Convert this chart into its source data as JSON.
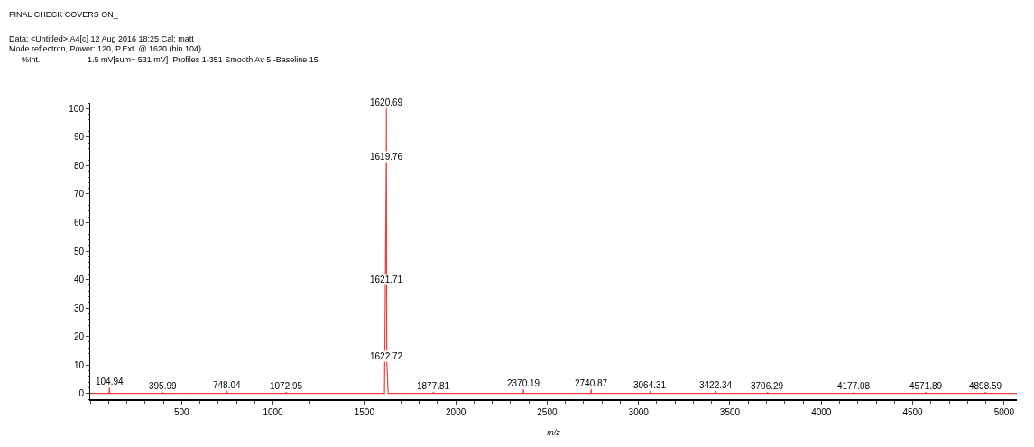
{
  "chart_data": {
    "type": "line",
    "title": "FINAL CHECK COVERS ON_",
    "subtitle": "Data: <Untitled>.A4[c] 12 Aug 2016 18:25 Cal: matt",
    "annotations": [
      "Mode reflectron, Power: 120, P.Ext. @ 1620 (bin 104)",
      "%Int.",
      "1.5 mV[sum= 531 mV]  Profiles 1-351 Smooth Av 5 -Baseline 15",
      {
        "text": "104.94",
        "x": 104.94,
        "y": 2
      },
      {
        "text": "395.99",
        "x": 395.99,
        "y": 0.5
      },
      {
        "text": "748.04",
        "x": 748.04,
        "y": 1
      },
      {
        "text": "1072.95",
        "x": 1072.95,
        "y": 0.5
      },
      {
        "text": "1620.69",
        "x": 1620.69,
        "y": 100
      },
      {
        "text": "1619.76",
        "x": 1619.76,
        "y": 81
      },
      {
        "text": "1621.71",
        "x": 1621.71,
        "y": 38
      },
      {
        "text": "1622.72",
        "x": 1622.72,
        "y": 11
      },
      {
        "text": "1877.81",
        "x": 1877.81,
        "y": 0.5
      },
      {
        "text": "2370.19",
        "x": 2370.19,
        "y": 1.5
      },
      {
        "text": "2740.87",
        "x": 2740.87,
        "y": 1.5
      },
      {
        "text": "3064.31",
        "x": 3064.31,
        "y": 1
      },
      {
        "text": "3422.34",
        "x": 3422.34,
        "y": 1
      },
      {
        "text": "3706.29",
        "x": 3706.29,
        "y": 0.5
      },
      {
        "text": "4177.08",
        "x": 4177.08,
        "y": 0.5
      },
      {
        "text": "4571.89",
        "x": 4571.89,
        "y": 0.5
      },
      {
        "text": "4898.59",
        "x": 4898.59,
        "y": 0.5
      }
    ],
    "xlabel": "m/z",
    "x": [
      0,
      103,
      104.94,
      107,
      394,
      395.99,
      398,
      746,
      748.04,
      750,
      1071,
      1072.95,
      1075,
      1610,
      1619.76,
      1620.69,
      1621.71,
      1622.72,
      1630,
      1876,
      1877.81,
      1880,
      2368,
      2370.19,
      2372,
      2739,
      2740.87,
      2743,
      3062,
      3064.31,
      3066,
      3420,
      3422.34,
      3424,
      3704,
      3706.29,
      3708,
      4175,
      4177.08,
      4179,
      4570,
      4571.89,
      4574,
      4897,
      4898.59,
      4900,
      5070
    ],
    "series": [
      {
        "color": "#f04040",
        "values": [
          0,
          0,
          2,
          0,
          0,
          0.5,
          0,
          0,
          1,
          0,
          0,
          0.5,
          0,
          0,
          81,
          100,
          38,
          11,
          0,
          0,
          0.5,
          0,
          0,
          1.5,
          0,
          0,
          1.5,
          0,
          0,
          1,
          0,
          0,
          1,
          0,
          0,
          0.5,
          0,
          0,
          0.5,
          0,
          0,
          0.5,
          0,
          0,
          0.5,
          0,
          0
        ]
      }
    ],
    "xlim": [
      0,
      5070
    ],
    "ylim": [
      -2,
      102
    ],
    "xticks": [
      500,
      1000,
      1500,
      2000,
      2500,
      3000,
      3500,
      4000,
      4500,
      5000
    ],
    "yticks": [
      0,
      10,
      20,
      30,
      40,
      50,
      60,
      70,
      80,
      90,
      100
    ],
    "marker": "none",
    "line_style": "solid"
  }
}
